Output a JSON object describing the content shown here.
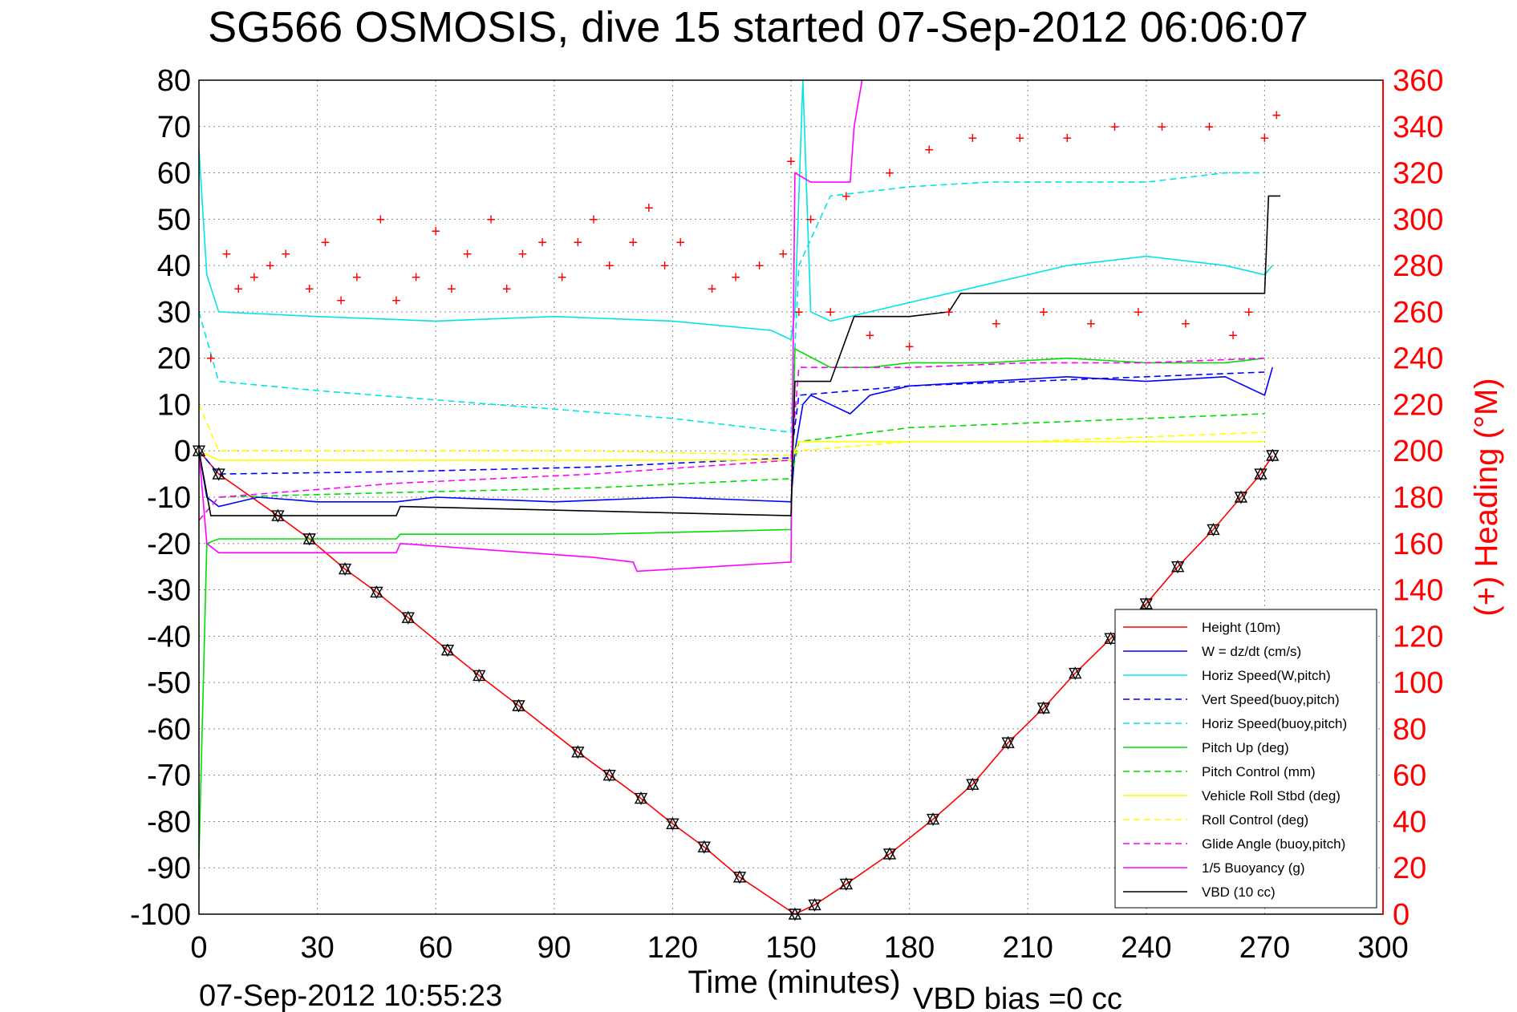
{
  "chart_data": {
    "type": "line",
    "title": "SG566 OSMOSIS, dive 15 started 07-Sep-2012 06:06:07",
    "xlabel": "Time (minutes)",
    "ylabel_right": "(+) Heading (°M)",
    "footer_left": "07-Sep-2012 10:55:23",
    "footer_right": "VBD bias =0 cc",
    "xlim": [
      0,
      300
    ],
    "ylim": [
      -100,
      80
    ],
    "ylim_right": [
      0,
      360
    ],
    "x_ticks": [
      "0",
      "30",
      "60",
      "90",
      "120",
      "150",
      "180",
      "210",
      "240",
      "270",
      "300"
    ],
    "y_ticks": [
      "80",
      "70",
      "60",
      "50",
      "40",
      "30",
      "20",
      "10",
      "0",
      "-10",
      "-20",
      "-30",
      "-40",
      "-50",
      "-60",
      "-70",
      "-80",
      "-90",
      "-100"
    ],
    "y_ticks_right": [
      "360",
      "340",
      "320",
      "300",
      "280",
      "260",
      "240",
      "220",
      "200",
      "180",
      "160",
      "140",
      "120",
      "100",
      "80",
      "60",
      "40",
      "20",
      "0"
    ],
    "grid": true,
    "legend_position": "bottom-right",
    "series": [
      {
        "name": "Height (10m)",
        "color": "#ff0000",
        "style": "solid",
        "x": [
          0,
          5,
          20,
          28,
          37,
          45,
          53,
          63,
          71,
          81,
          96,
          104,
          112,
          120,
          128,
          137,
          151,
          156,
          164,
          175,
          186,
          196,
          205,
          214,
          222,
          231,
          240,
          248,
          257,
          264,
          269,
          272
        ],
        "y": [
          0,
          -5,
          -14,
          -19,
          -25.5,
          -30.5,
          -36,
          -43,
          -48.5,
          -55,
          -65,
          -70,
          -75,
          -80.5,
          -85.5,
          -92,
          -100,
          -98,
          -93.5,
          -87,
          -79.5,
          -72,
          -63,
          -55.5,
          -48,
          -40.5,
          -33,
          -25,
          -17,
          -10,
          -5,
          -1
        ]
      },
      {
        "name": "W = dz/dt (cm/s)",
        "color": "#0000ff",
        "style": "solid",
        "x": [
          0,
          2,
          5,
          15,
          30,
          50,
          60,
          90,
          120,
          150,
          151,
          153,
          155,
          160,
          165,
          170,
          180,
          200,
          220,
          240,
          260,
          270,
          272
        ],
        "y": [
          0,
          -10,
          -12,
          -10,
          -11,
          -11,
          -10,
          -11,
          -10,
          -11,
          0,
          10,
          12,
          10,
          8,
          12,
          14,
          15,
          16,
          15,
          16,
          12,
          18
        ]
      },
      {
        "name": "Horiz Speed(W,pitch)",
        "color": "#00e5e5",
        "style": "solid",
        "x": [
          0,
          2,
          5,
          30,
          60,
          90,
          120,
          145,
          150,
          151,
          153,
          155,
          160,
          170,
          180,
          190,
          200,
          220,
          240,
          260,
          270,
          272
        ],
        "y": [
          65,
          38,
          30,
          29,
          28,
          29,
          28,
          26,
          24,
          30,
          80,
          30,
          28,
          30,
          32,
          34,
          36,
          40,
          42,
          40,
          38,
          40
        ]
      },
      {
        "name": "Vert Speed(buoy,pitch)",
        "color": "#0000ff",
        "style": "dashed",
        "x": [
          0,
          5,
          50,
          100,
          150,
          152,
          180,
          210,
          240,
          270
        ],
        "y": [
          0,
          -5,
          -4.5,
          -3.5,
          -1.5,
          12,
          14,
          15,
          16,
          17
        ]
      },
      {
        "name": "Horiz Speed(buoy,pitch)",
        "color": "#00e5e5",
        "style": "dashed",
        "x": [
          0,
          5,
          30,
          60,
          90,
          120,
          150,
          152,
          160,
          180,
          200,
          220,
          240,
          260,
          270
        ],
        "y": [
          30,
          15,
          13,
          11,
          9,
          7,
          4,
          40,
          55,
          57,
          58,
          58,
          58,
          60,
          60
        ]
      },
      {
        "name": "Pitch Up (deg)",
        "color": "#00dd00",
        "style": "solid",
        "x": [
          0,
          2,
          5,
          50,
          51,
          100,
          150,
          151,
          160,
          170,
          180,
          200,
          220,
          240,
          260,
          270
        ],
        "y": [
          -88,
          -20,
          -19,
          -19,
          -18,
          -18,
          -17,
          22,
          18,
          18,
          19,
          19,
          20,
          19,
          19,
          20
        ]
      },
      {
        "name": "Pitch Control (mm)",
        "color": "#00dd00",
        "style": "dashed",
        "x": [
          0,
          5,
          50,
          100,
          150,
          152,
          180,
          210,
          240,
          270
        ],
        "y": [
          -15,
          -10,
          -9,
          -8,
          -6,
          2,
          5,
          6,
          7,
          8
        ]
      },
      {
        "name": "Vehicle Roll Stbd (deg)",
        "color": "#ffff00",
        "style": "solid",
        "x": [
          0,
          5,
          50,
          100,
          150,
          152,
          180,
          210,
          240,
          270
        ],
        "y": [
          0,
          -2,
          -2,
          -2,
          -2,
          2,
          2,
          2,
          2,
          2
        ]
      },
      {
        "name": "Roll Control (deg)",
        "color": "#ffff00",
        "style": "dashed",
        "x": [
          0,
          5,
          50,
          100,
          150,
          152,
          180,
          210,
          240,
          270
        ],
        "y": [
          10,
          0,
          0,
          0,
          -1,
          0,
          2,
          2,
          3,
          4
        ]
      },
      {
        "name": "Glide Angle (buoy,pitch)",
        "color": "#ff00ff",
        "style": "dashed",
        "x": [
          0,
          5,
          50,
          100,
          150,
          152,
          180,
          210,
          240,
          270
        ],
        "y": [
          -15,
          -10,
          -7,
          -5,
          -2,
          18,
          18,
          19,
          19,
          20
        ]
      },
      {
        "name": "1/5 Buoyancy (g)",
        "color": "#ff00ff",
        "style": "solid",
        "x": [
          0,
          2,
          5,
          50,
          51,
          100,
          110,
          111,
          150,
          151,
          155,
          165,
          166,
          168
        ],
        "y": [
          0,
          -20,
          -22,
          -22,
          -20,
          -23,
          -24,
          -26,
          -24,
          60,
          58,
          58,
          70,
          80
        ]
      },
      {
        "name": "VBD (10 cc)",
        "color": "#000000",
        "style": "solid",
        "x": [
          0,
          3,
          50,
          51,
          150,
          151,
          160,
          166,
          170,
          180,
          190,
          193,
          260,
          270,
          271,
          274
        ],
        "y": [
          0,
          -14,
          -14,
          -12,
          -14,
          15,
          15,
          29,
          29,
          29,
          30,
          34,
          34,
          34,
          55,
          55
        ]
      }
    ],
    "heading_series": {
      "axis": "right",
      "name": "(+) Heading",
      "x": [
        3,
        7,
        10,
        14,
        18,
        22,
        28,
        32,
        36,
        40,
        46,
        50,
        55,
        60,
        64,
        68,
        74,
        78,
        82,
        87,
        92,
        96,
        100,
        104,
        110,
        114,
        118,
        122,
        130,
        136,
        142,
        148,
        150,
        152,
        155,
        160,
        164,
        170,
        175,
        180,
        185,
        190,
        196,
        202,
        208,
        214,
        220,
        226,
        232,
        238,
        244,
        250,
        256,
        262,
        266,
        270,
        273
      ],
      "y": [
        240,
        285,
        270,
        275,
        280,
        285,
        270,
        290,
        265,
        275,
        300,
        265,
        275,
        295,
        270,
        285,
        300,
        270,
        285,
        290,
        275,
        290,
        300,
        280,
        290,
        305,
        280,
        290,
        270,
        275,
        280,
        285,
        325,
        260,
        300,
        260,
        310,
        250,
        320,
        245,
        330,
        260,
        335,
        255,
        335,
        260,
        335,
        255,
        340,
        260,
        340,
        255,
        340,
        250,
        260,
        335,
        345
      ]
    }
  }
}
